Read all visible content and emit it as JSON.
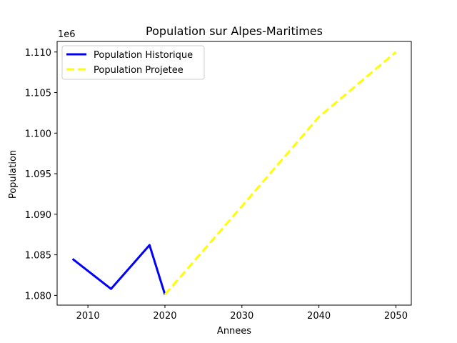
{
  "chart_data": {
    "type": "line",
    "title": "Population sur Alpes-Maritimes",
    "xlabel": "Annees",
    "ylabel": "Population",
    "y_offset_label": "1e6",
    "xlim": [
      2006,
      2052
    ],
    "ylim": [
      1078800,
      1111300
    ],
    "x_ticks": [
      2010,
      2020,
      2030,
      2040,
      2050
    ],
    "y_ticks": [
      1080000,
      1085000,
      1090000,
      1095000,
      1100000,
      1105000,
      1110000
    ],
    "y_tick_labels": [
      "1.080",
      "1.085",
      "1.090",
      "1.095",
      "1.100",
      "1.105",
      "1.110"
    ],
    "grid": false,
    "legend_position": "upper-left",
    "series": [
      {
        "name": "Population Historique",
        "style": "solid",
        "color": "#0000ff",
        "x": [
          2008,
          2013,
          2018,
          2020
        ],
        "y": [
          1084500,
          1080800,
          1086200,
          1080100
        ]
      },
      {
        "name": "Population Projetee",
        "style": "dashed",
        "color": "#ffff00",
        "x": [
          2020,
          2030,
          2040,
          2050
        ],
        "y": [
          1080100,
          1091000,
          1102000,
          1110000
        ]
      }
    ]
  }
}
